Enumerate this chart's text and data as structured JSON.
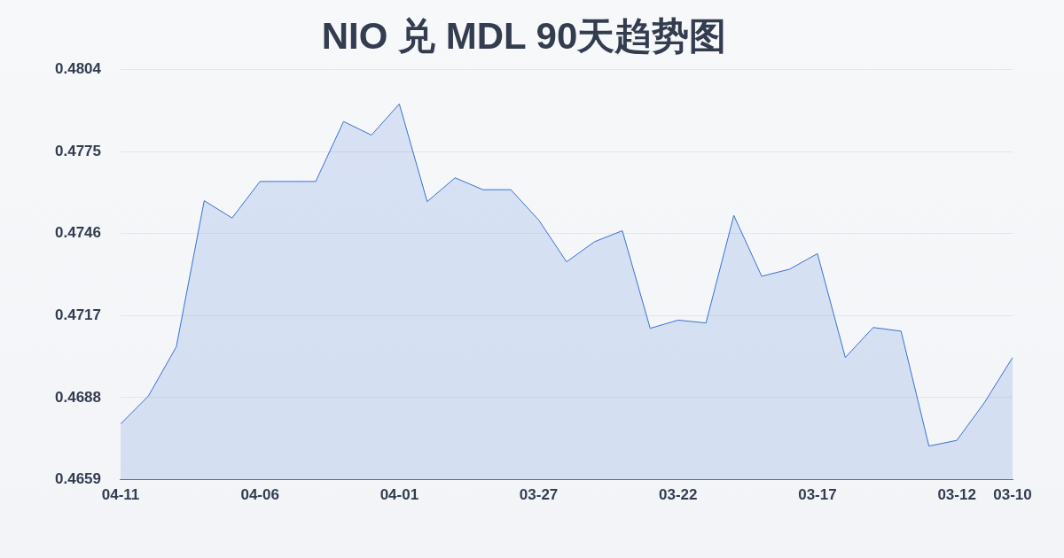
{
  "chart_data": {
    "type": "area",
    "title": "NIO 兑 MDL 90天趋势图",
    "categories": [
      "04-11",
      null,
      null,
      null,
      null,
      "04-06",
      null,
      null,
      null,
      null,
      "04-01",
      null,
      null,
      null,
      null,
      "03-27",
      null,
      null,
      null,
      null,
      "03-22",
      null,
      null,
      null,
      null,
      "03-17",
      null,
      null,
      null,
      null,
      "03-12",
      null,
      "03-10"
    ],
    "series": [
      {
        "color": "#3b6fd4",
        "values": [
          0.46787,
          0.46886,
          0.4706,
          0.47576,
          0.47515,
          0.47644,
          0.47644,
          0.47644,
          0.47856,
          0.47808,
          0.47918,
          0.47573,
          0.47657,
          0.47615,
          0.47615,
          0.47508,
          0.4736,
          0.47431,
          0.4747,
          0.47125,
          0.47154,
          0.47144,
          0.47524,
          0.47309,
          0.47334,
          0.47389,
          0.47022,
          0.47128,
          0.47115,
          0.46709,
          0.46729,
          0.46864,
          0.47022
        ]
      }
    ],
    "ylim": [
      0.4659,
      0.4804
    ],
    "yticks": [
      0.4659,
      0.4688,
      0.4717,
      0.4746,
      0.4775,
      0.4804
    ],
    "grid": "y",
    "legend": false,
    "marker": "none"
  }
}
